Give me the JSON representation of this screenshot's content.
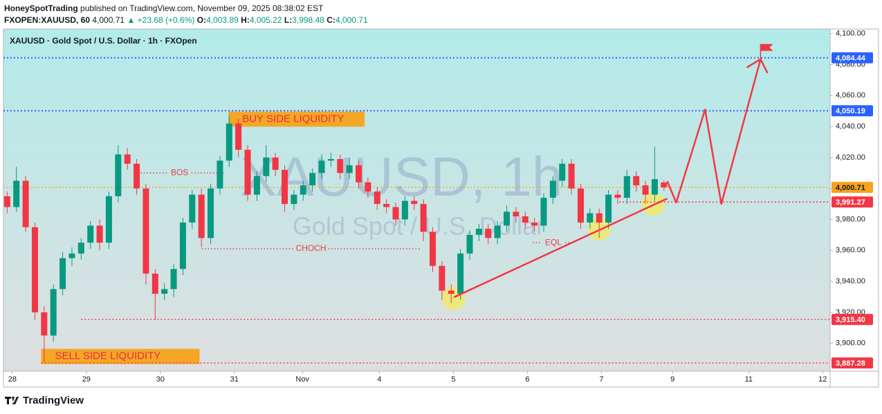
{
  "header": {
    "author": "HoneySpotTrading",
    "published": "published on TradingView.com, November 09, 2025 08:38:02 EST",
    "symbol": "FXOPEN:XAUUSD, 60",
    "last": "4,000.71",
    "change": "+23.68 (+0.6%)",
    "ohlc": [
      {
        "key": "O:",
        "value": "4,003.89"
      },
      {
        "key": "H:",
        "value": "4,005.22"
      },
      {
        "key": "L:",
        "value": "3,998.48"
      },
      {
        "key": "C:",
        "value": "4,000.71"
      }
    ]
  },
  "footer": {
    "brand": "TradingView"
  },
  "chart_data": {
    "type": "candlestick",
    "title": "XAUUSD · Gold Spot / U.S. Dollar · 1h · FXOpen",
    "watermark": "XAUUSD, 1h",
    "watermark_sub": "Gold Spot / U.S. Dollar",
    "up_color": "#089981",
    "down_color": "#f23645",
    "xlim": [
      -0.12,
      11.05
    ],
    "ylim": [
      3882,
      4103
    ],
    "xticks": [
      {
        "value": 0,
        "label": "28"
      },
      {
        "value": 1,
        "label": "29"
      },
      {
        "value": 2,
        "label": "30"
      },
      {
        "value": 3,
        "label": "31"
      },
      {
        "value": 3.92,
        "label": "Nov"
      },
      {
        "value": 4.96,
        "label": "4"
      },
      {
        "value": 5.96,
        "label": "5"
      },
      {
        "value": 6.96,
        "label": "6"
      },
      {
        "value": 7.96,
        "label": "7"
      },
      {
        "value": 8.92,
        "label": "9"
      },
      {
        "value": 9.95,
        "label": "11"
      },
      {
        "value": 10.95,
        "label": "12"
      }
    ],
    "yticks": [
      {
        "value": 3900,
        "label": "3,900.00"
      },
      {
        "value": 3920,
        "label": "3,920.00"
      },
      {
        "value": 3940,
        "label": "3,940.00"
      },
      {
        "value": 3960,
        "label": "3,960.00"
      },
      {
        "value": 3980,
        "label": "3,980.00"
      },
      {
        "value": 4000,
        "label": "4,000.00"
      },
      {
        "value": 4020,
        "label": "4,020.00"
      },
      {
        "value": 4040,
        "label": "4,040.00"
      },
      {
        "value": 4060,
        "label": "4,060.00"
      },
      {
        "value": 4080,
        "label": "4,080.00"
      },
      {
        "value": 4100,
        "label": "4,100.00"
      }
    ],
    "candles": {
      "x": [
        -0.07,
        0.055,
        0.18,
        0.305,
        0.43,
        0.555,
        0.68,
        0.805,
        0.93,
        1.055,
        1.18,
        1.305,
        1.43,
        1.555,
        1.68,
        1.805,
        1.93,
        2.055,
        2.18,
        2.305,
        2.43,
        2.555,
        2.68,
        2.805,
        2.93,
        3.055,
        3.18,
        3.305,
        3.43,
        3.555,
        3.68,
        3.805,
        3.93,
        4.055,
        4.18,
        4.305,
        4.43,
        4.555,
        4.68,
        4.805,
        4.93,
        5.055,
        5.18,
        5.305,
        5.43,
        5.555,
        5.68,
        5.805,
        5.93,
        6.055,
        6.18,
        6.305,
        6.43,
        6.555,
        6.68,
        6.805,
        6.93,
        7.055,
        7.18,
        7.305,
        7.43,
        7.555,
        7.68,
        7.805,
        7.93,
        8.055,
        8.18,
        8.305,
        8.43,
        8.555,
        8.68,
        8.805
      ],
      "open": [
        3995,
        3988,
        4005,
        3975,
        3920,
        3905,
        3935,
        3955,
        3958,
        3965,
        3976,
        3965,
        3995,
        4022,
        4016,
        4000,
        3945,
        3932,
        3935,
        3948,
        3978,
        3996,
        3968,
        4000,
        4018,
        4042,
        4025,
        3996,
        4008,
        4020,
        4012,
        3990,
        3996,
        4002,
        4010,
        4018,
        4019,
        4010,
        4015,
        4004,
        3998,
        3990,
        3988,
        3980,
        3992,
        3990,
        3972,
        3950,
        3934,
        3932,
        3958,
        3970,
        3974,
        3968,
        3976,
        3985,
        3982,
        3978,
        3976,
        3994,
        4005,
        4016,
        4000,
        3978,
        3984,
        3978,
        3996,
        3994,
        4008,
        4002,
        3996,
        4003.89
      ],
      "high": [
        3998,
        4014,
        4008,
        3978,
        3924,
        3938,
        3959,
        3962,
        3968,
        3979,
        3980,
        3998,
        4028,
        4026,
        4019,
        4003,
        3948,
        3939,
        3951,
        3981,
        3999,
        4000,
        4003,
        4021,
        4047,
        4045,
        4028,
        4011,
        4028,
        4023,
        4015,
        3999,
        4005,
        4013,
        4022,
        4023,
        4022,
        4020,
        4018,
        4007,
        4001,
        3993,
        3991,
        3995,
        3995,
        3993,
        3975,
        3953,
        3938,
        3961,
        3973,
        3977,
        3977,
        3979,
        3989,
        3988,
        3985,
        3981,
        3997,
        4008,
        4019,
        4019,
        4003,
        3987,
        3987,
        3999,
        3999,
        4012,
        4011,
        4005,
        4027,
        4005.22
      ],
      "low": [
        3984,
        3985,
        3972,
        3915,
        3888,
        3901,
        3931,
        3950,
        3954,
        3961,
        3960,
        3961,
        3991,
        4012,
        3996,
        3938,
        3915,
        3928,
        3930,
        3944,
        3974,
        3962,
        3964,
        3996,
        4014,
        4020,
        3992,
        3992,
        4004,
        4008,
        3985,
        3986,
        3992,
        3998,
        4006,
        4014,
        4006,
        4006,
        4000,
        3994,
        3986,
        3984,
        3976,
        3976,
        3986,
        3966,
        3946,
        3928,
        3926,
        3928,
        3954,
        3966,
        3964,
        3964,
        3972,
        3978,
        3974,
        3972,
        3972,
        3990,
        4001,
        3996,
        3974,
        3974,
        3968,
        3974,
        3990,
        3990,
        3998,
        3990,
        3992,
        3998.48
      ],
      "close": [
        3988,
        4005,
        3975,
        3920,
        3905,
        3935,
        3955,
        3958,
        3965,
        3976,
        3965,
        3995,
        4022,
        4016,
        4000,
        3945,
        3932,
        3935,
        3948,
        3978,
        3996,
        3968,
        4000,
        4018,
        4042,
        4025,
        3996,
        4008,
        4020,
        4012,
        3990,
        3996,
        4002,
        4010,
        4018,
        4019,
        4010,
        4015,
        4004,
        3998,
        3990,
        3988,
        3980,
        3992,
        3990,
        3972,
        3950,
        3934,
        3932,
        3958,
        3970,
        3974,
        3968,
        3976,
        3985,
        3982,
        3978,
        3976,
        3994,
        4005,
        4016,
        4000,
        3978,
        3984,
        3978,
        3996,
        3994,
        4008,
        4002,
        3996,
        4006,
        4000.71
      ]
    },
    "levels": [
      {
        "value": 4084.44,
        "label": "4,084.44",
        "color": "#2962ff",
        "x_start": -0.12
      },
      {
        "value": 4050.19,
        "label": "4,050.19",
        "color": "#2962ff",
        "x_start": -0.12
      },
      {
        "value": 4000.71,
        "label": "4,000.71",
        "color": "#f7a21b",
        "x_start": -0.12
      },
      {
        "value": 3991.27,
        "label": "3,991.27",
        "color": "#f23645",
        "x_start": 8.2
      },
      {
        "value": 3915.4,
        "label": "3,915.40",
        "color": "#f23645",
        "x_start": 0.93
      },
      {
        "value": 3887.28,
        "label": "3,887.28",
        "color": "#f23645",
        "x_start": 0.39
      }
    ],
    "annotations": [
      {
        "text": "BOS",
        "x": [
          1.65,
          2.87
        ],
        "y": 4010
      },
      {
        "text": "CHOCH",
        "x": [
          2.56,
          5.51
        ],
        "y": 3961
      },
      {
        "text": "EQL",
        "x": [
          7.03,
          7.59
        ],
        "y": 3965
      }
    ],
    "zones": [
      {
        "text": "BUY SIDE LIQUIDITY",
        "x": [
          2.92,
          4.76
        ],
        "y": [
          4039.9,
          4049.7
        ]
      },
      {
        "text": "SELL SIDE LIQUIDITY",
        "x": [
          0.39,
          2.53
        ],
        "y": [
          3886.6,
          3896.4
        ]
      }
    ],
    "trendline": {
      "x": [
        5.97,
        8.85
      ],
      "y": [
        3929.8,
        3993.5
      ]
    },
    "projection": {
      "x": [
        8.85,
        8.97,
        9.36,
        9.58,
        10.11
      ],
      "y": [
        4004.7,
        3990.9,
        4051,
        3990,
        4083.5
      ]
    },
    "highlights": {
      "x": [
        5.96,
        7.93,
        8.66
      ],
      "y": [
        3929,
        3974,
        3990
      ]
    }
  }
}
